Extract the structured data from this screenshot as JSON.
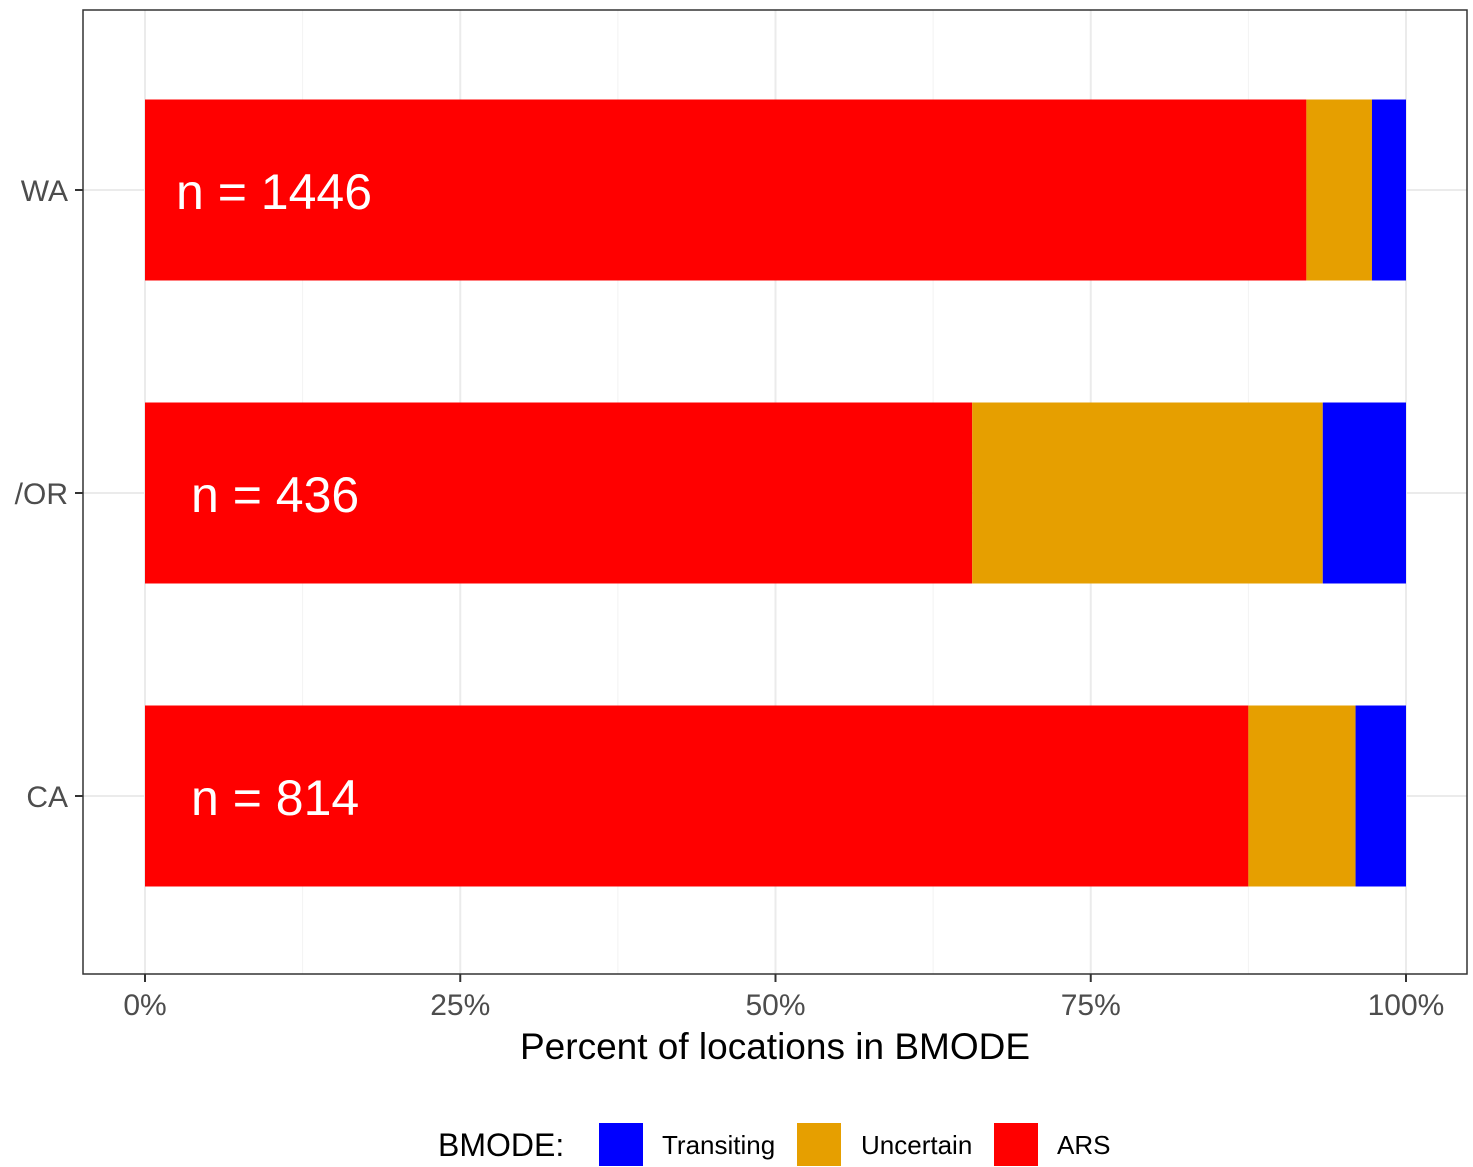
{
  "chart_data": {
    "type": "bar",
    "orientation": "horizontal",
    "stacked": true,
    "categories": [
      "WA",
      "OR",
      "CA"
    ],
    "category_display": [
      "WA",
      "/OR",
      "CA"
    ],
    "annotations": [
      "n = 1446",
      "n = 436",
      "n = 814"
    ],
    "series": [
      {
        "name": "ARS",
        "color": "#ff0000",
        "values": [
          92.1,
          65.6,
          87.5
        ]
      },
      {
        "name": "Uncertain",
        "color": "#e69f00",
        "values": [
          5.2,
          27.8,
          8.5
        ]
      },
      {
        "name": "Transiting",
        "color": "#0000ff",
        "values": [
          2.7,
          6.6,
          4.0
        ]
      }
    ],
    "xlabel": "Percent of locations in BMODE",
    "ylabel": "",
    "xlim": [
      0,
      100
    ],
    "xticks": [
      0,
      25,
      50,
      75,
      100
    ],
    "xtick_labels": [
      "0%",
      "25%",
      "50%",
      "75%",
      "100%"
    ],
    "grid": true,
    "legend": {
      "title": "BMODE:",
      "position": "bottom",
      "entries": [
        {
          "label": "Transiting",
          "color": "#0000ff"
        },
        {
          "label": "Uncertain",
          "color": "#e69f00"
        },
        {
          "label": "ARS",
          "color": "#ff0000"
        }
      ]
    }
  }
}
